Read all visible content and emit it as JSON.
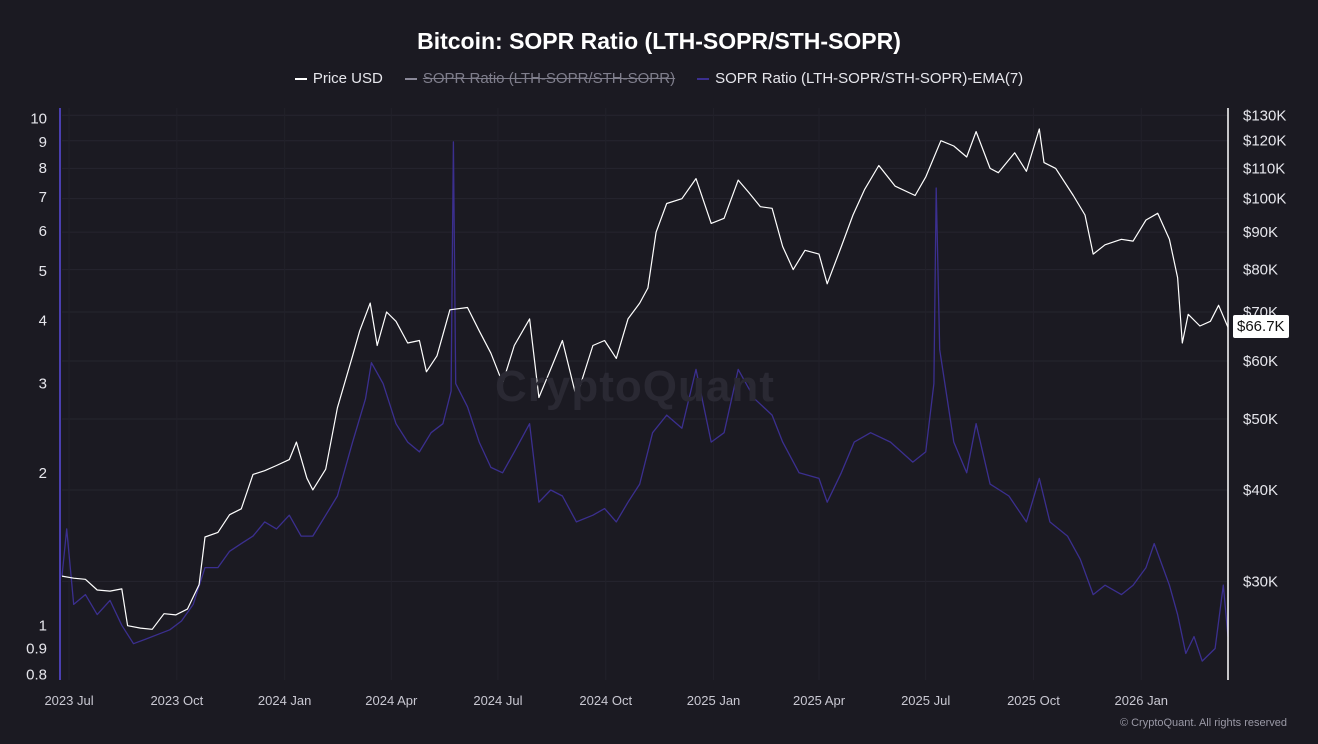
{
  "chart_data": {
    "type": "line",
    "title": "Bitcoin: SOPR Ratio (LTH-SOPR/STH-SOPR)",
    "legend": [
      {
        "label": "Price USD",
        "color": "#ffffff",
        "hidden": false
      },
      {
        "label": "SOPR Ratio (LTH-SOPR/STH-SOPR)",
        "color": "#8a8898",
        "hidden": true
      },
      {
        "label": "SOPR Ratio (LTH-SOPR/STH-SOPR)-EMA(7)",
        "color": "#3b2f8f",
        "hidden": false
      }
    ],
    "left_axis": {
      "scale": "log",
      "range": [
        0.78,
        10.5
      ],
      "ticks": [
        {
          "value": 10,
          "label": "10"
        },
        {
          "value": 9,
          "label": "9"
        },
        {
          "value": 8,
          "label": "8"
        },
        {
          "value": 7,
          "label": "7"
        },
        {
          "value": 6,
          "label": "6"
        },
        {
          "value": 5,
          "label": "5"
        },
        {
          "value": 4,
          "label": "4"
        },
        {
          "value": 3,
          "label": "3"
        },
        {
          "value": 2,
          "label": "2"
        },
        {
          "value": 1,
          "label": "1"
        },
        {
          "value": 0.9,
          "label": "0.9"
        },
        {
          "value": 0.8,
          "label": "0.8"
        }
      ]
    },
    "right_axis": {
      "scale": "log",
      "range": [
        22000,
        133000
      ],
      "ticks": [
        {
          "value": 130000,
          "label": "$130K"
        },
        {
          "value": 120000,
          "label": "$120K"
        },
        {
          "value": 110000,
          "label": "$110K"
        },
        {
          "value": 100000,
          "label": "$100K"
        },
        {
          "value": 90000,
          "label": "$90K"
        },
        {
          "value": 80000,
          "label": "$80K"
        },
        {
          "value": 70000,
          "label": "$70K"
        },
        {
          "value": 60000,
          "label": "$60K"
        },
        {
          "value": 50000,
          "label": "$50K"
        },
        {
          "value": 40000,
          "label": "$40K"
        },
        {
          "value": 30000,
          "label": "$30K"
        }
      ],
      "current_value_label": "$66.7K"
    },
    "x_axis": {
      "range": [
        "2023-06-25",
        "2026-03-16"
      ],
      "ticks": [
        {
          "date": "2023-07-01",
          "label": "2023 Jul"
        },
        {
          "date": "2023-10-01",
          "label": "2023 Oct"
        },
        {
          "date": "2024-01-01",
          "label": "2024 Jan"
        },
        {
          "date": "2024-04-01",
          "label": "2024 Apr"
        },
        {
          "date": "2024-07-01",
          "label": "2024 Jul"
        },
        {
          "date": "2024-10-01",
          "label": "2024 Oct"
        },
        {
          "date": "2025-01-01",
          "label": "2025 Jan"
        },
        {
          "date": "2025-04-01",
          "label": "2025 Apr"
        },
        {
          "date": "2025-07-01",
          "label": "2025 Jul"
        },
        {
          "date": "2025-10-01",
          "label": "2025 Oct"
        },
        {
          "date": "2026-01-01",
          "label": "2026 Jan"
        }
      ]
    },
    "grid": true,
    "series": [
      {
        "name": "Price USD",
        "axis": "right",
        "color": "#ffffff",
        "points": [
          [
            "2023-06-25",
            30500
          ],
          [
            "2023-07-05",
            30300
          ],
          [
            "2023-07-15",
            30200
          ],
          [
            "2023-07-25",
            29200
          ],
          [
            "2023-08-05",
            29100
          ],
          [
            "2023-08-15",
            29300
          ],
          [
            "2023-08-20",
            26100
          ],
          [
            "2023-08-31",
            25900
          ],
          [
            "2023-09-10",
            25800
          ],
          [
            "2023-09-20",
            27100
          ],
          [
            "2023-09-30",
            27000
          ],
          [
            "2023-10-10",
            27500
          ],
          [
            "2023-10-20",
            29700
          ],
          [
            "2023-10-25",
            34500
          ],
          [
            "2023-11-05",
            35000
          ],
          [
            "2023-11-15",
            37000
          ],
          [
            "2023-11-25",
            37700
          ],
          [
            "2023-12-05",
            42000
          ],
          [
            "2023-12-15",
            42500
          ],
          [
            "2023-12-25",
            43200
          ],
          [
            "2024-01-05",
            44000
          ],
          [
            "2024-01-11",
            46500
          ],
          [
            "2024-01-20",
            41500
          ],
          [
            "2024-01-25",
            40000
          ],
          [
            "2024-02-05",
            42700
          ],
          [
            "2024-02-15",
            51800
          ],
          [
            "2024-02-28",
            61000
          ],
          [
            "2024-03-05",
            66000
          ],
          [
            "2024-03-14",
            72000
          ],
          [
            "2024-03-20",
            63000
          ],
          [
            "2024-03-28",
            70000
          ],
          [
            "2024-04-05",
            68000
          ],
          [
            "2024-04-15",
            63500
          ],
          [
            "2024-04-25",
            64000
          ],
          [
            "2024-05-01",
            58000
          ],
          [
            "2024-05-10",
            61000
          ],
          [
            "2024-05-21",
            70500
          ],
          [
            "2024-06-05",
            71000
          ],
          [
            "2024-06-15",
            66000
          ],
          [
            "2024-06-25",
            61500
          ],
          [
            "2024-07-05",
            56000
          ],
          [
            "2024-07-15",
            63000
          ],
          [
            "2024-07-28",
            68500
          ],
          [
            "2024-08-05",
            53500
          ],
          [
            "2024-08-15",
            58500
          ],
          [
            "2024-08-25",
            64000
          ],
          [
            "2024-09-06",
            53500
          ],
          [
            "2024-09-20",
            63000
          ],
          [
            "2024-09-30",
            64000
          ],
          [
            "2024-10-10",
            60500
          ],
          [
            "2024-10-20",
            68500
          ],
          [
            "2024-10-30",
            72000
          ],
          [
            "2024-11-06",
            75500
          ],
          [
            "2024-11-13",
            90000
          ],
          [
            "2024-11-22",
            98500
          ],
          [
            "2024-12-05",
            100000
          ],
          [
            "2024-12-17",
            106500
          ],
          [
            "2024-12-30",
            92500
          ],
          [
            "2025-01-10",
            94000
          ],
          [
            "2025-01-22",
            106000
          ],
          [
            "2025-01-31",
            102000
          ],
          [
            "2025-02-10",
            97500
          ],
          [
            "2025-02-20",
            97000
          ],
          [
            "2025-03-01",
            86000
          ],
          [
            "2025-03-10",
            80000
          ],
          [
            "2025-03-20",
            85000
          ],
          [
            "2025-04-01",
            84000
          ],
          [
            "2025-04-08",
            76500
          ],
          [
            "2025-04-20",
            86000
          ],
          [
            "2025-04-30",
            95000
          ],
          [
            "2025-05-10",
            103000
          ],
          [
            "2025-05-22",
            111000
          ],
          [
            "2025-06-05",
            104000
          ],
          [
            "2025-06-22",
            101000
          ],
          [
            "2025-07-01",
            107000
          ],
          [
            "2025-07-14",
            120000
          ],
          [
            "2025-07-25",
            118000
          ],
          [
            "2025-08-05",
            114000
          ],
          [
            "2025-08-13",
            123500
          ],
          [
            "2025-08-25",
            110000
          ],
          [
            "2025-09-01",
            108500
          ],
          [
            "2025-09-15",
            115500
          ],
          [
            "2025-09-25",
            109000
          ],
          [
            "2025-10-06",
            124500
          ],
          [
            "2025-10-10",
            112000
          ],
          [
            "2025-10-20",
            110000
          ],
          [
            "2025-11-04",
            101000
          ],
          [
            "2025-11-14",
            95000
          ],
          [
            "2025-11-21",
            84000
          ],
          [
            "2025-12-01",
            86500
          ],
          [
            "2025-12-15",
            88000
          ],
          [
            "2025-12-25",
            87500
          ],
          [
            "2026-01-05",
            93500
          ],
          [
            "2026-01-15",
            95500
          ],
          [
            "2026-01-25",
            88000
          ],
          [
            "2026-02-01",
            78000
          ],
          [
            "2026-02-05",
            63500
          ],
          [
            "2026-02-10",
            69500
          ],
          [
            "2026-02-20",
            67000
          ],
          [
            "2026-03-01",
            68000
          ],
          [
            "2026-03-08",
            71500
          ],
          [
            "2026-03-16",
            66700
          ]
        ]
      },
      {
        "name": "SOPR Ratio (LTH-SOPR/STH-SOPR)-EMA(7)",
        "axis": "left",
        "color": "#3b2f8f",
        "points": [
          [
            "2023-06-25",
            1.25
          ],
          [
            "2023-06-29",
            1.55
          ],
          [
            "2023-07-05",
            1.1
          ],
          [
            "2023-07-15",
            1.15
          ],
          [
            "2023-07-25",
            1.05
          ],
          [
            "2023-08-05",
            1.12
          ],
          [
            "2023-08-15",
            1.0
          ],
          [
            "2023-08-25",
            0.92
          ],
          [
            "2023-09-05",
            0.94
          ],
          [
            "2023-09-15",
            0.96
          ],
          [
            "2023-09-25",
            0.98
          ],
          [
            "2023-10-05",
            1.02
          ],
          [
            "2023-10-15",
            1.1
          ],
          [
            "2023-10-25",
            1.3
          ],
          [
            "2023-11-05",
            1.3
          ],
          [
            "2023-11-15",
            1.4
          ],
          [
            "2023-11-25",
            1.45
          ],
          [
            "2023-12-05",
            1.5
          ],
          [
            "2023-12-15",
            1.6
          ],
          [
            "2023-12-25",
            1.55
          ],
          [
            "2024-01-05",
            1.65
          ],
          [
            "2024-01-15",
            1.5
          ],
          [
            "2024-01-25",
            1.5
          ],
          [
            "2024-02-05",
            1.65
          ],
          [
            "2024-02-15",
            1.8
          ],
          [
            "2024-02-28",
            2.3
          ],
          [
            "2024-03-10",
            2.8
          ],
          [
            "2024-03-15",
            3.3
          ],
          [
            "2024-03-25",
            3.0
          ],
          [
            "2024-04-05",
            2.5
          ],
          [
            "2024-04-15",
            2.3
          ],
          [
            "2024-04-25",
            2.2
          ],
          [
            "2024-05-05",
            2.4
          ],
          [
            "2024-05-15",
            2.5
          ],
          [
            "2024-05-22",
            2.9
          ],
          [
            "2024-05-24",
            9.0
          ],
          [
            "2024-05-26",
            3.0
          ],
          [
            "2024-06-05",
            2.7
          ],
          [
            "2024-06-15",
            2.3
          ],
          [
            "2024-06-25",
            2.05
          ],
          [
            "2024-07-05",
            2.0
          ],
          [
            "2024-07-15",
            2.2
          ],
          [
            "2024-07-28",
            2.5
          ],
          [
            "2024-08-05",
            1.75
          ],
          [
            "2024-08-15",
            1.85
          ],
          [
            "2024-08-25",
            1.8
          ],
          [
            "2024-09-06",
            1.6
          ],
          [
            "2024-09-20",
            1.65
          ],
          [
            "2024-09-30",
            1.7
          ],
          [
            "2024-10-10",
            1.6
          ],
          [
            "2024-10-20",
            1.75
          ],
          [
            "2024-10-30",
            1.9
          ],
          [
            "2024-11-10",
            2.4
          ],
          [
            "2024-11-22",
            2.6
          ],
          [
            "2024-12-05",
            2.45
          ],
          [
            "2024-12-17",
            3.2
          ],
          [
            "2024-12-30",
            2.3
          ],
          [
            "2025-01-10",
            2.4
          ],
          [
            "2025-01-22",
            3.2
          ],
          [
            "2025-02-05",
            2.8
          ],
          [
            "2025-02-20",
            2.6
          ],
          [
            "2025-03-01",
            2.3
          ],
          [
            "2025-03-15",
            2.0
          ],
          [
            "2025-04-01",
            1.95
          ],
          [
            "2025-04-08",
            1.75
          ],
          [
            "2025-04-20",
            2.0
          ],
          [
            "2025-05-01",
            2.3
          ],
          [
            "2025-05-15",
            2.4
          ],
          [
            "2025-06-01",
            2.3
          ],
          [
            "2025-06-20",
            2.1
          ],
          [
            "2025-07-01",
            2.2
          ],
          [
            "2025-07-08",
            3.0
          ],
          [
            "2025-07-10",
            7.3
          ],
          [
            "2025-07-13",
            3.5
          ],
          [
            "2025-07-25",
            2.3
          ],
          [
            "2025-08-05",
            2.0
          ],
          [
            "2025-08-13",
            2.5
          ],
          [
            "2025-08-25",
            1.9
          ],
          [
            "2025-09-10",
            1.8
          ],
          [
            "2025-09-25",
            1.6
          ],
          [
            "2025-10-06",
            1.95
          ],
          [
            "2025-10-15",
            1.6
          ],
          [
            "2025-10-30",
            1.5
          ],
          [
            "2025-11-10",
            1.35
          ],
          [
            "2025-11-21",
            1.15
          ],
          [
            "2025-12-01",
            1.2
          ],
          [
            "2025-12-15",
            1.15
          ],
          [
            "2025-12-25",
            1.2
          ],
          [
            "2026-01-05",
            1.3
          ],
          [
            "2026-01-12",
            1.45
          ],
          [
            "2026-01-25",
            1.2
          ],
          [
            "2026-02-01",
            1.05
          ],
          [
            "2026-02-08",
            0.88
          ],
          [
            "2026-02-15",
            0.95
          ],
          [
            "2026-02-22",
            0.85
          ],
          [
            "2026-03-05",
            0.9
          ],
          [
            "2026-03-12",
            1.2
          ],
          [
            "2026-03-16",
            0.95
          ]
        ]
      }
    ]
  },
  "watermark": "CryptoQuant",
  "copyright": "© CryptoQuant. All rights reserved"
}
